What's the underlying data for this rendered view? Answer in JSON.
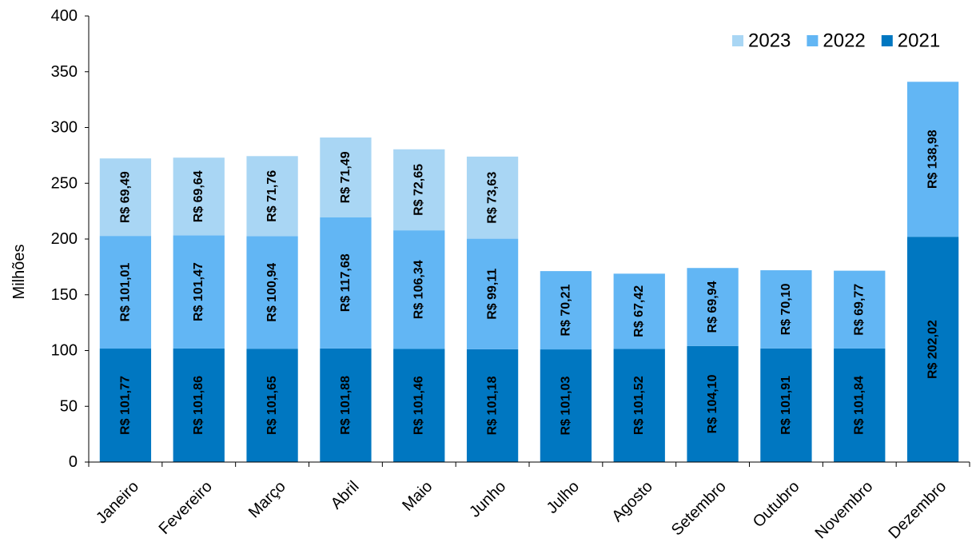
{
  "chart_data": {
    "type": "bar",
    "stacked": true,
    "title": "",
    "xlabel": "",
    "ylabel": "Milhões",
    "ylim": [
      0,
      400
    ],
    "yticks": [
      0,
      50,
      100,
      150,
      200,
      250,
      300,
      350,
      400
    ],
    "grid": false,
    "legend_position": "top-right",
    "categories": [
      "Janeiro",
      "Fevereiro",
      "Março",
      "Abril",
      "Maio",
      "Junho",
      "Julho",
      "Agosto",
      "Setembro",
      "Outubro",
      "Novembro",
      "Dezembro"
    ],
    "series": [
      {
        "name": "2021",
        "color": "#0077c1",
        "values": [
          101.77,
          101.86,
          101.65,
          101.88,
          101.46,
          101.18,
          101.03,
          101.52,
          104.1,
          101.91,
          101.84,
          202.02
        ],
        "labels": [
          "R$ 101,77",
          "R$ 101,86",
          "R$ 101,65",
          "R$ 101,88",
          "R$ 101,46",
          "R$ 101,18",
          "R$ 101,03",
          "R$ 101,52",
          "R$ 104,10",
          "R$ 101,91",
          "R$ 101,84",
          "R$ 202,02"
        ]
      },
      {
        "name": "2022",
        "color": "#62b6f4",
        "values": [
          101.01,
          101.47,
          100.94,
          117.68,
          106.34,
          99.11,
          70.21,
          67.42,
          69.94,
          70.1,
          69.77,
          138.98
        ],
        "labels": [
          "R$ 101,01",
          "R$ 101,47",
          "R$ 100,94",
          "R$ 117,68",
          "R$ 106,34",
          "R$ 99,11",
          "R$ 70,21",
          "R$ 67,42",
          "R$ 69,94",
          "R$ 70,10",
          "R$ 69,77",
          "R$ 138,98"
        ]
      },
      {
        "name": "2023",
        "color": "#a9d6f4",
        "values": [
          69.49,
          69.64,
          71.76,
          71.49,
          72.65,
          73.63,
          null,
          null,
          null,
          null,
          null,
          null
        ],
        "labels": [
          "R$ 69,49",
          "R$ 69,64",
          "R$ 71,76",
          "R$ 71,49",
          "R$ 72,65",
          "R$ 73,63",
          null,
          null,
          null,
          null,
          null,
          null
        ]
      }
    ],
    "legend_order": [
      "2023",
      "2022",
      "2021"
    ]
  }
}
